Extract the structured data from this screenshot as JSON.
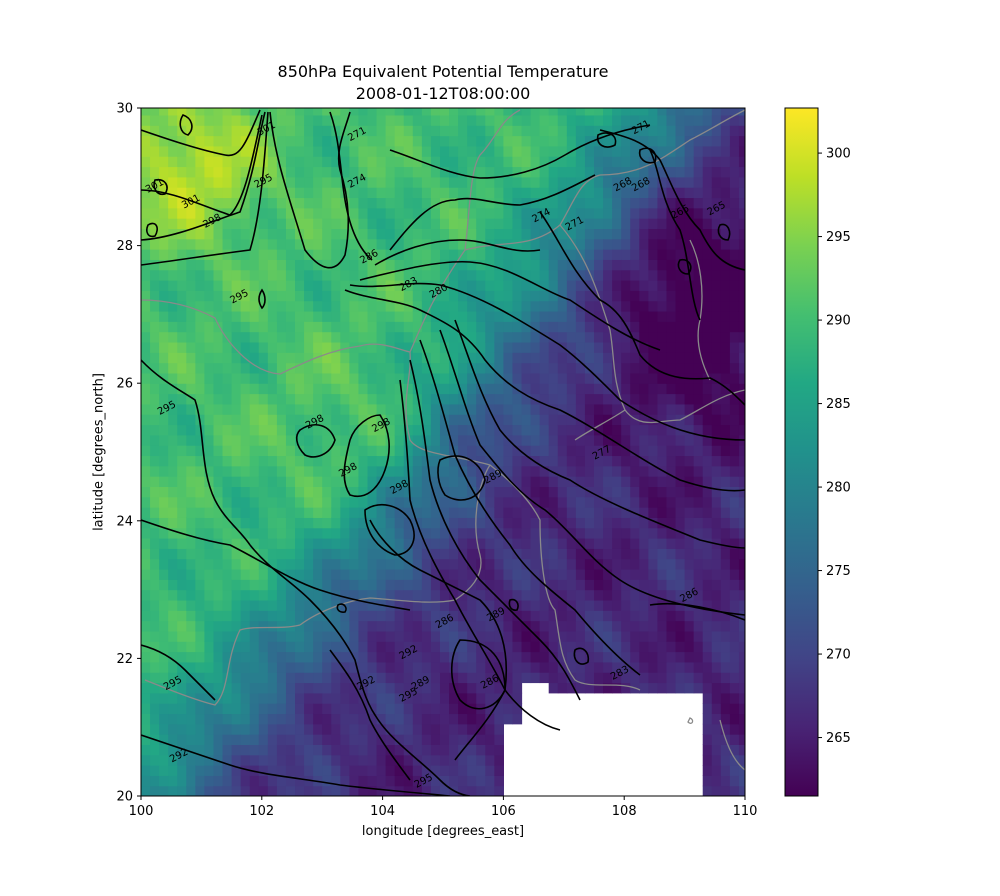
{
  "chart_data": {
    "type": "heatmap",
    "title": "850hPa Equivalent Potential Temperature",
    "subtitle": "2008-01-12T08:00:00",
    "xlabel": "longitude [degrees_east]",
    "ylabel": "latitude [degrees_north]",
    "xlim": [
      100,
      110
    ],
    "ylim": [
      20,
      30
    ],
    "xticks": [
      100,
      102,
      104,
      106,
      108,
      110
    ],
    "yticks": [
      20,
      22,
      24,
      26,
      28,
      30
    ],
    "colorbar": {
      "colormap": "viridis",
      "range": [
        261.5,
        302.7
      ],
      "ticks": [
        265,
        270,
        275,
        280,
        285,
        290,
        295,
        300
      ]
    },
    "contour_labels": [
      {
        "value": "301",
        "lon": 102.1,
        "lat": 29.66
      },
      {
        "value": "301",
        "lon": 100.25,
        "lat": 28.83
      },
      {
        "value": "301",
        "lon": 100.85,
        "lat": 28.6
      },
      {
        "value": "298",
        "lon": 101.2,
        "lat": 28.32
      },
      {
        "value": "295",
        "lon": 102.05,
        "lat": 28.9
      },
      {
        "value": "271",
        "lon": 103.6,
        "lat": 29.58
      },
      {
        "value": "274",
        "lon": 103.6,
        "lat": 28.9
      },
      {
        "value": "271",
        "lon": 108.3,
        "lat": 29.68
      },
      {
        "value": "268",
        "lon": 108.0,
        "lat": 28.85
      },
      {
        "value": "268",
        "lon": 108.3,
        "lat": 28.85
      },
      {
        "value": "265",
        "lon": 108.95,
        "lat": 28.45
      },
      {
        "value": "265",
        "lon": 109.55,
        "lat": 28.5
      },
      {
        "value": "274",
        "lon": 106.65,
        "lat": 28.4
      },
      {
        "value": "271",
        "lon": 107.2,
        "lat": 28.28
      },
      {
        "value": "286",
        "lon": 103.8,
        "lat": 27.8
      },
      {
        "value": "283",
        "lon": 104.45,
        "lat": 27.4
      },
      {
        "value": "280",
        "lon": 104.95,
        "lat": 27.3
      },
      {
        "value": "295",
        "lon": 101.65,
        "lat": 27.22
      },
      {
        "value": "295",
        "lon": 100.45,
        "lat": 25.6
      },
      {
        "value": "298",
        "lon": 102.9,
        "lat": 25.4
      },
      {
        "value": "298",
        "lon": 104.0,
        "lat": 25.35
      },
      {
        "value": "298",
        "lon": 103.45,
        "lat": 24.7
      },
      {
        "value": "298",
        "lon": 104.3,
        "lat": 24.45
      },
      {
        "value": "289",
        "lon": 105.85,
        "lat": 24.6
      },
      {
        "value": "277",
        "lon": 107.65,
        "lat": 24.95
      },
      {
        "value": "286",
        "lon": 109.1,
        "lat": 22.88
      },
      {
        "value": "289",
        "lon": 105.9,
        "lat": 22.6
      },
      {
        "value": "286",
        "lon": 105.05,
        "lat": 22.5
      },
      {
        "value": "292",
        "lon": 104.45,
        "lat": 22.05
      },
      {
        "value": "289",
        "lon": 104.65,
        "lat": 21.6
      },
      {
        "value": "295",
        "lon": 104.45,
        "lat": 21.43
      },
      {
        "value": "292",
        "lon": 103.75,
        "lat": 21.6
      },
      {
        "value": "286",
        "lon": 105.8,
        "lat": 21.62
      },
      {
        "value": "283",
        "lon": 107.95,
        "lat": 21.75
      },
      {
        "value": "295",
        "lon": 100.55,
        "lat": 21.6
      },
      {
        "value": "292",
        "lon": 100.65,
        "lat": 20.55
      },
      {
        "value": "295",
        "lon": 104.7,
        "lat": 20.18
      }
    ]
  }
}
